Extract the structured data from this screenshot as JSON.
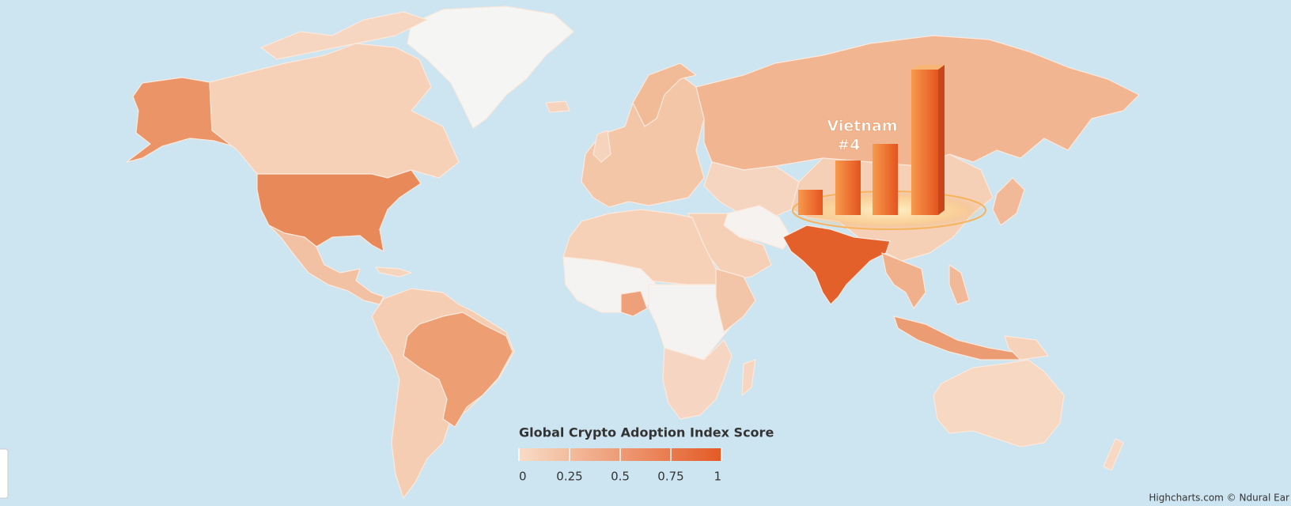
{
  "map": {
    "annotation": {
      "country": "Vietnam",
      "rank": "#4"
    },
    "legend": {
      "title": "Global Crypto Adoption Index Score",
      "range": [
        0,
        1
      ],
      "ticks": [
        0,
        0.25,
        0.5,
        0.75,
        1
      ],
      "colors": [
        "#f8dcc6",
        "#e45a25"
      ]
    },
    "credits": "Highcharts.com © Ndural Ear"
  }
}
